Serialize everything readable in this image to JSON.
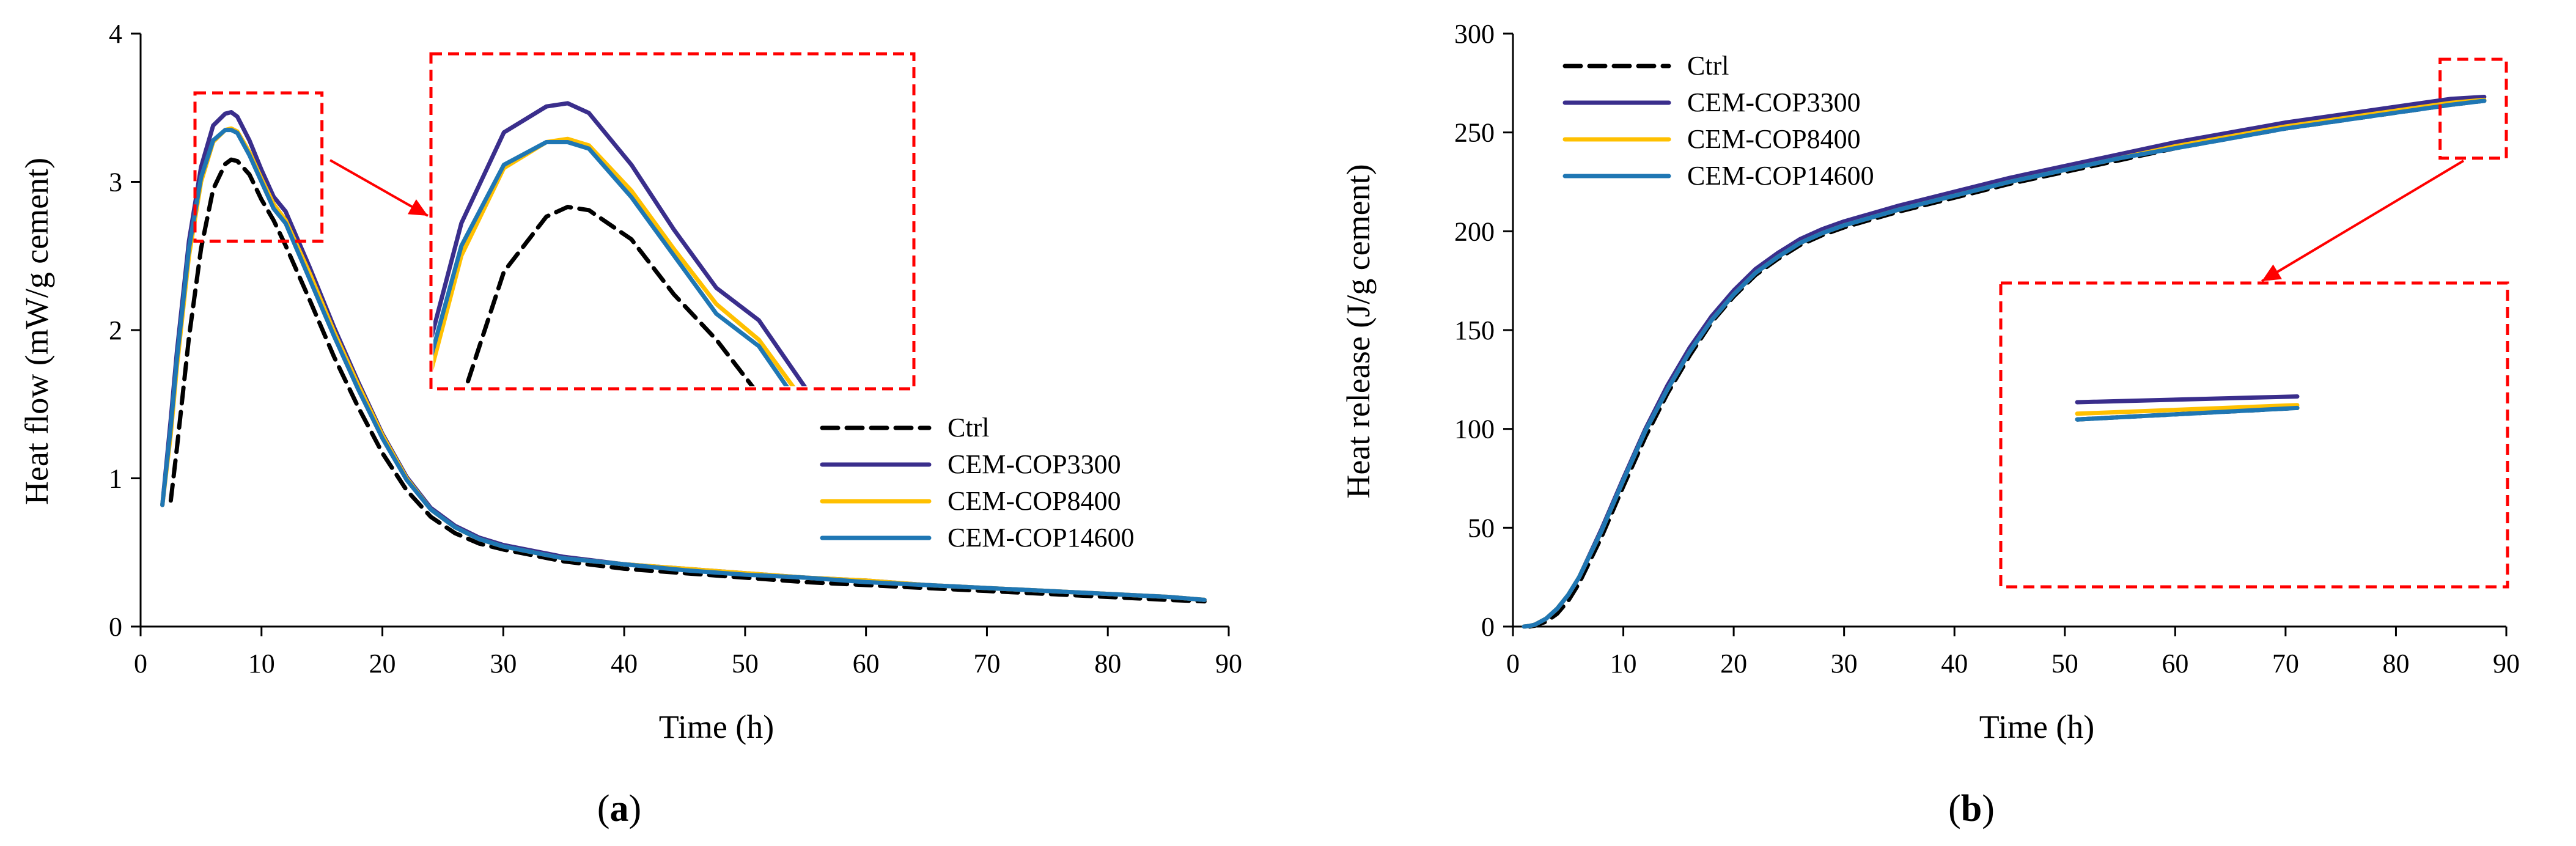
{
  "colors": {
    "ctrl": "#000000",
    "cop3300": "#3a2e8c",
    "cop8400": "#ffc000",
    "cop14600": "#1f77b4",
    "highlight": "#ff0000"
  },
  "chart_data": [
    {
      "type": "line",
      "panel_label": "(a)",
      "panel_letter": "a",
      "xlabel": "Time (h)",
      "ylabel": "Heat flow (mW/g cement)",
      "xlim": [
        0,
        90
      ],
      "ylim": [
        0,
        4
      ],
      "xticks": [
        0,
        10,
        20,
        30,
        40,
        50,
        60,
        70,
        80,
        90
      ],
      "yticks": [
        0,
        1,
        2,
        3,
        4
      ],
      "legend_position": "bottom-right",
      "zoom_region": {
        "x": [
          4.5,
          15
        ],
        "y": [
          2.6,
          3.6
        ]
      },
      "series": [
        {
          "name": "Ctrl",
          "key": "ctrl",
          "dashed": true,
          "x": [
            2.5,
            3,
            4,
            5,
            6,
            7,
            7.5,
            8,
            9,
            10,
            11,
            12,
            14,
            16,
            18,
            20,
            22,
            24,
            26,
            28,
            30,
            35,
            40,
            45,
            50,
            55,
            60,
            65,
            70,
            75,
            80,
            85,
            88
          ],
          "y": [
            0.85,
            1.2,
            1.95,
            2.55,
            2.95,
            3.12,
            3.15,
            3.14,
            3.05,
            2.88,
            2.74,
            2.57,
            2.2,
            1.82,
            1.48,
            1.17,
            0.92,
            0.74,
            0.63,
            0.56,
            0.52,
            0.44,
            0.39,
            0.36,
            0.33,
            0.3,
            0.28,
            0.26,
            0.24,
            0.22,
            0.2,
            0.18,
            0.17
          ]
        },
        {
          "name": "CEM-COP3300",
          "key": "cop3300",
          "dashed": false,
          "x": [
            1.8,
            2.5,
            3,
            4,
            5,
            6,
            7,
            7.5,
            8,
            9,
            10,
            11,
            12,
            14,
            16,
            18,
            20,
            22,
            24,
            26,
            28,
            30,
            35,
            40,
            45,
            50,
            55,
            60,
            65,
            70,
            75,
            80,
            85,
            88
          ],
          "y": [
            0.82,
            1.4,
            1.85,
            2.6,
            3.1,
            3.38,
            3.46,
            3.47,
            3.44,
            3.28,
            3.08,
            2.9,
            2.8,
            2.42,
            2.02,
            1.65,
            1.3,
            1.01,
            0.8,
            0.68,
            0.6,
            0.55,
            0.47,
            0.42,
            0.39,
            0.36,
            0.33,
            0.31,
            0.28,
            0.26,
            0.24,
            0.22,
            0.2,
            0.18
          ]
        },
        {
          "name": "CEM-COP8400",
          "key": "cop8400",
          "dashed": false,
          "x": [
            1.8,
            2.5,
            3,
            4,
            5,
            6,
            7,
            7.5,
            8,
            9,
            10,
            11,
            12,
            14,
            16,
            18,
            20,
            22,
            24,
            26,
            28,
            30,
            35,
            40,
            45,
            50,
            55,
            60,
            65,
            70,
            75,
            80,
            85,
            88
          ],
          "y": [
            0.82,
            1.3,
            1.75,
            2.5,
            3.0,
            3.27,
            3.35,
            3.36,
            3.34,
            3.2,
            3.02,
            2.85,
            2.74,
            2.38,
            1.99,
            1.63,
            1.29,
            1.0,
            0.79,
            0.67,
            0.59,
            0.54,
            0.46,
            0.42,
            0.39,
            0.36,
            0.33,
            0.31,
            0.28,
            0.26,
            0.24,
            0.22,
            0.2,
            0.18
          ]
        },
        {
          "name": "CEM-COP14600",
          "key": "cop14600",
          "dashed": false,
          "x": [
            1.8,
            2.5,
            3,
            4,
            5,
            6,
            7,
            7.5,
            8,
            9,
            10,
            11,
            12,
            14,
            16,
            18,
            20,
            22,
            24,
            26,
            28,
            30,
            35,
            40,
            45,
            50,
            55,
            60,
            65,
            70,
            75,
            80,
            85,
            88
          ],
          "y": [
            0.82,
            1.35,
            1.8,
            2.55,
            3.03,
            3.28,
            3.35,
            3.35,
            3.33,
            3.18,
            3.0,
            2.82,
            2.72,
            2.34,
            1.96,
            1.6,
            1.27,
            0.99,
            0.79,
            0.67,
            0.59,
            0.54,
            0.46,
            0.42,
            0.38,
            0.35,
            0.33,
            0.3,
            0.28,
            0.26,
            0.24,
            0.22,
            0.2,
            0.18
          ]
        }
      ]
    },
    {
      "type": "line",
      "panel_label": "(b)",
      "panel_letter": "b",
      "xlabel": "Time (h)",
      "ylabel": "Heat release (J/g cement)",
      "xlim": [
        0,
        90
      ],
      "ylim": [
        0,
        300
      ],
      "xticks": [
        0,
        10,
        20,
        30,
        40,
        50,
        60,
        70,
        80,
        90
      ],
      "yticks": [
        0,
        50,
        100,
        150,
        200,
        250,
        300
      ],
      "legend_position": "top-left",
      "zoom_region": {
        "x": [
          84,
          90
        ],
        "y": [
          237,
          287
        ]
      },
      "series": [
        {
          "name": "Ctrl",
          "key": "ctrl",
          "dashed": true,
          "x": [
            1.5,
            2,
            3,
            4,
            5,
            6,
            8,
            10,
            12,
            14,
            16,
            18,
            20,
            22,
            24,
            26,
            28,
            30,
            35,
            40,
            45,
            50,
            55,
            60,
            65,
            70,
            75,
            80,
            85,
            88
          ],
          "y": [
            0,
            0.5,
            2.5,
            6.5,
            13,
            22,
            45,
            71,
            96,
            118,
            137,
            154,
            167,
            178,
            186,
            193,
            198,
            202,
            210,
            217,
            224,
            230,
            236,
            242,
            247,
            252,
            256,
            260,
            264,
            266
          ]
        },
        {
          "name": "CEM-COP3300",
          "key": "cop3300",
          "dashed": false,
          "x": [
            1,
            1.5,
            2,
            3,
            4,
            5,
            6,
            8,
            10,
            12,
            14,
            16,
            18,
            20,
            22,
            24,
            26,
            28,
            30,
            35,
            40,
            45,
            50,
            55,
            60,
            65,
            70,
            75,
            80,
            85,
            88
          ],
          "y": [
            0,
            0.3,
            1,
            4,
            9,
            16,
            25,
            49,
            75,
            100,
            122,
            141,
            157,
            170,
            181,
            189,
            196,
            201,
            205,
            213,
            220,
            227,
            233,
            239,
            245,
            250,
            255,
            259,
            263,
            267,
            268
          ]
        },
        {
          "name": "CEM-COP8400",
          "key": "cop8400",
          "dashed": false,
          "x": [
            1,
            1.5,
            2,
            3,
            4,
            5,
            6,
            8,
            10,
            12,
            14,
            16,
            18,
            20,
            22,
            24,
            26,
            28,
            30,
            35,
            40,
            45,
            50,
            55,
            60,
            65,
            70,
            75,
            80,
            85,
            88
          ],
          "y": [
            0,
            0.3,
            1,
            4,
            9,
            16,
            25,
            48,
            74,
            99,
            120,
            139,
            155,
            168,
            179,
            187,
            194,
            199,
            203,
            211,
            218,
            225,
            231,
            237,
            243,
            248,
            253,
            257,
            261,
            265,
            266.5
          ]
        },
        {
          "name": "CEM-COP14600",
          "key": "cop14600",
          "dashed": false,
          "x": [
            1,
            1.5,
            2,
            3,
            4,
            5,
            6,
            8,
            10,
            12,
            14,
            16,
            18,
            20,
            22,
            24,
            26,
            28,
            30,
            35,
            40,
            45,
            50,
            55,
            60,
            65,
            70,
            75,
            80,
            85,
            88
          ],
          "y": [
            0,
            0.3,
            1,
            4,
            9,
            16,
            25,
            48,
            74,
            99,
            120,
            139,
            155,
            168,
            179,
            187,
            194,
            199,
            203,
            211,
            218,
            225,
            231,
            237,
            242,
            247,
            252,
            256,
            260,
            264,
            266
          ]
        }
      ]
    }
  ]
}
